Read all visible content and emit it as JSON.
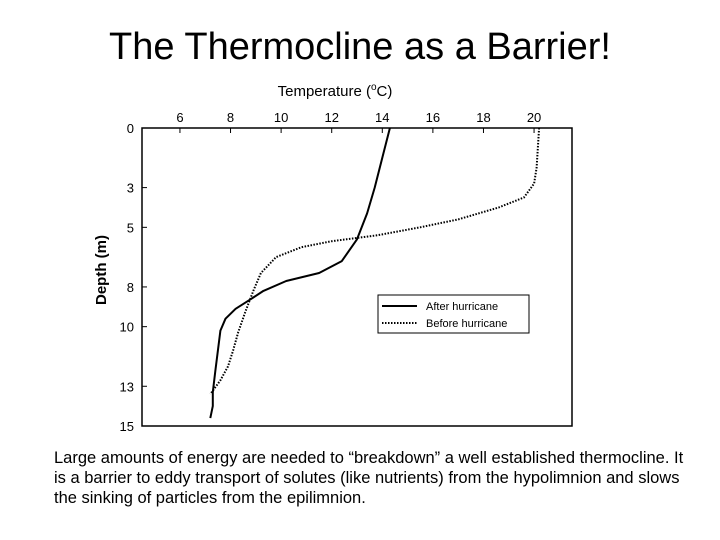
{
  "slide": {
    "title": "The Thermocline as a Barrier!",
    "caption": "Large amounts of energy are needed to “breakdown” a well established thermocline.  It is a barrier to eddy transport of solutes (like nutrients) from the hypolimnion and slows the sinking of particles from the epilimnion."
  },
  "chart_data": {
    "type": "line",
    "title": "",
    "xlabel": "Temperature (°C)",
    "xlabel_parts": {
      "main": "Temperature (",
      "sup": "o",
      "tail": "C)"
    },
    "ylabel": "Depth (m)",
    "xlim": [
      4.5,
      21.5
    ],
    "ylim": [
      0,
      15
    ],
    "y_inverted": true,
    "x_axis_position": "top",
    "x_ticks": [
      6,
      8,
      10,
      12,
      14,
      16,
      18,
      20
    ],
    "y_ticks": [
      0,
      3,
      5,
      8,
      10,
      13,
      15
    ],
    "grid": false,
    "legend_position": "lower-right",
    "series": [
      {
        "name": "After hurricane",
        "style": "solid",
        "color": "#000000",
        "points": [
          [
            14.3,
            0
          ],
          [
            14.0,
            1.5
          ],
          [
            13.7,
            3
          ],
          [
            13.4,
            4.3
          ],
          [
            13.0,
            5.6
          ],
          [
            12.4,
            6.7
          ],
          [
            11.5,
            7.3
          ],
          [
            10.2,
            7.7
          ],
          [
            9.3,
            8.2
          ],
          [
            8.7,
            8.7
          ],
          [
            8.2,
            9.1
          ],
          [
            7.8,
            9.6
          ],
          [
            7.6,
            10.2
          ],
          [
            7.5,
            11.2
          ],
          [
            7.4,
            12.2
          ],
          [
            7.3,
            13.3
          ],
          [
            7.3,
            14.0
          ],
          [
            7.2,
            14.6
          ]
        ]
      },
      {
        "name": "Before hurricane",
        "style": "dotted",
        "color": "#000000",
        "points": [
          [
            20.2,
            0
          ],
          [
            20.1,
            2.0
          ],
          [
            20.0,
            2.8
          ],
          [
            19.6,
            3.5
          ],
          [
            18.6,
            4.0
          ],
          [
            17.0,
            4.6
          ],
          [
            15.5,
            5.0
          ],
          [
            13.8,
            5.4
          ],
          [
            12.0,
            5.7
          ],
          [
            10.8,
            6.0
          ],
          [
            9.8,
            6.5
          ],
          [
            9.2,
            7.3
          ],
          [
            8.9,
            8.2
          ],
          [
            8.6,
            9.2
          ],
          [
            8.3,
            10.3
          ],
          [
            8.1,
            11.2
          ],
          [
            7.9,
            12.0
          ],
          [
            7.6,
            12.7
          ],
          [
            7.2,
            13.4
          ]
        ]
      }
    ]
  }
}
